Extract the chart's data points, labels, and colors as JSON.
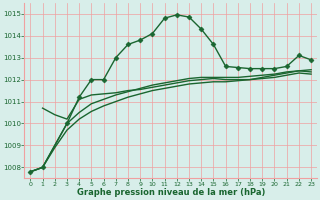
{
  "xlabel": "Graphe pression niveau de la mer (hPa)",
  "ylim": [
    1007.5,
    1015.5
  ],
  "xlim": [
    -0.5,
    23.5
  ],
  "yticks": [
    1008,
    1009,
    1010,
    1011,
    1012,
    1013,
    1014,
    1015
  ],
  "xticks": [
    0,
    1,
    2,
    3,
    4,
    5,
    6,
    7,
    8,
    9,
    10,
    11,
    12,
    13,
    14,
    15,
    16,
    17,
    18,
    19,
    20,
    21,
    22,
    23
  ],
  "bg_color": "#d8eeea",
  "grid_color": "#f0a0a0",
  "line_color": "#1a6630",
  "series": [
    {
      "x": [
        0,
        1,
        3,
        4,
        5,
        6,
        7,
        8,
        9,
        10,
        11,
        12,
        13,
        14,
        15,
        16,
        17,
        18,
        19,
        20,
        21,
        22,
        23
      ],
      "y": [
        1007.8,
        1008.0,
        1010.0,
        1011.2,
        1012.0,
        1012.0,
        1013.0,
        1013.6,
        1013.8,
        1014.1,
        1014.8,
        1014.95,
        1014.85,
        1014.3,
        1013.6,
        1012.6,
        1012.55,
        1012.5,
        1012.5,
        1012.5,
        1012.6,
        1013.1,
        1012.9
      ],
      "marker": "D",
      "markersize": 2.5,
      "linewidth": 1.0,
      "linestyle": "-"
    },
    {
      "x": [
        1,
        2,
        3,
        4,
        5,
        6,
        7,
        8,
        9,
        10,
        11,
        12,
        13,
        14,
        15,
        16,
        17,
        18,
        19,
        20,
        21,
        22,
        23
      ],
      "y": [
        1010.7,
        1010.4,
        1010.2,
        1011.1,
        1011.3,
        1011.35,
        1011.4,
        1011.5,
        1011.55,
        1011.65,
        1011.75,
        1011.85,
        1011.95,
        1012.0,
        1012.05,
        1012.0,
        1012.0,
        1012.0,
        1012.05,
        1012.1,
        1012.2,
        1012.3,
        1012.25
      ],
      "marker": null,
      "markersize": 0,
      "linewidth": 1.0,
      "linestyle": "-"
    },
    {
      "x": [
        0,
        1,
        2,
        3,
        4,
        5,
        6,
        7,
        8,
        9,
        10,
        11,
        12,
        13,
        14,
        15,
        16,
        17,
        18,
        19,
        20,
        21,
        22,
        23
      ],
      "y": [
        1007.8,
        1008.0,
        1009.0,
        1010.0,
        1010.5,
        1010.9,
        1011.1,
        1011.3,
        1011.45,
        1011.6,
        1011.75,
        1011.85,
        1011.95,
        1012.05,
        1012.1,
        1012.1,
        1012.1,
        1012.1,
        1012.15,
        1012.2,
        1012.25,
        1012.35,
        1012.4,
        1012.35
      ],
      "marker": null,
      "markersize": 0,
      "linewidth": 1.0,
      "linestyle": "-"
    },
    {
      "x": [
        0,
        1,
        2,
        3,
        4,
        5,
        6,
        7,
        8,
        9,
        10,
        11,
        12,
        13,
        14,
        15,
        16,
        17,
        18,
        19,
        20,
        21,
        22,
        23
      ],
      "y": [
        1007.8,
        1008.0,
        1008.9,
        1009.7,
        1010.2,
        1010.55,
        1010.8,
        1011.0,
        1011.2,
        1011.35,
        1011.5,
        1011.6,
        1011.7,
        1011.8,
        1011.85,
        1011.9,
        1011.9,
        1011.95,
        1012.0,
        1012.1,
        1012.2,
        1012.3,
        1012.4,
        1012.45
      ],
      "marker": null,
      "markersize": 0,
      "linewidth": 1.0,
      "linestyle": "-"
    }
  ]
}
